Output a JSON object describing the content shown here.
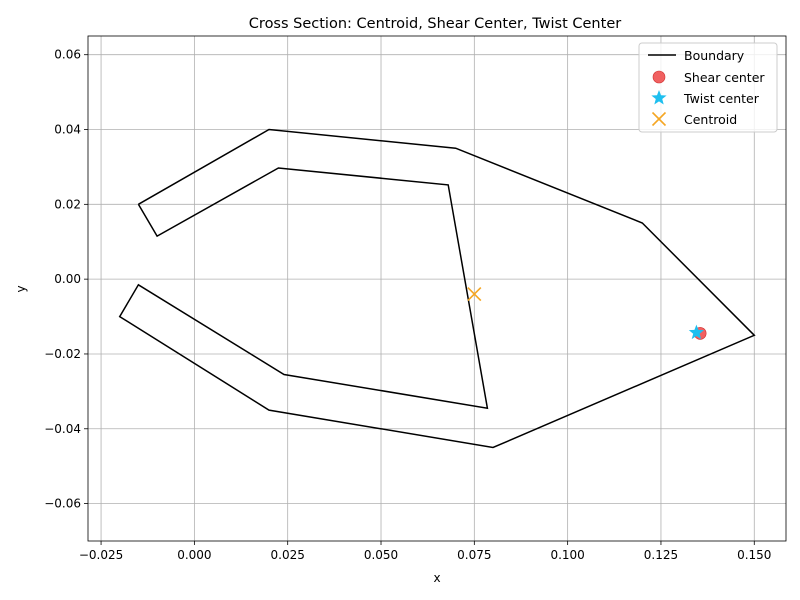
{
  "chart_data": {
    "type": "scatter",
    "title": "Cross Section: Centroid, Shear Center, Twist Center",
    "xlabel": "x",
    "ylabel": "y",
    "xlim": [
      -0.0285,
      0.1585
    ],
    "ylim": [
      -0.07,
      0.065
    ],
    "xticks": [
      -0.025,
      0.0,
      0.025,
      0.05,
      0.075,
      0.1,
      0.125,
      0.15
    ],
    "xtick_labels": [
      "−0.025",
      "0.000",
      "0.025",
      "0.050",
      "0.075",
      "0.100",
      "0.125",
      "0.150"
    ],
    "yticks": [
      -0.06,
      -0.04,
      -0.02,
      0.0,
      0.02,
      0.04,
      0.06
    ],
    "ytick_labels": [
      "−0.06",
      "−0.04",
      "−0.02",
      "0.00",
      "0.02",
      "0.04",
      "0.06"
    ],
    "grid": true,
    "legend_position": "top-right",
    "boundary": {
      "name": "Boundary",
      "color": "#000000",
      "points": [
        [
          -0.015,
          0.02
        ],
        [
          0.02,
          0.04
        ],
        [
          0.07,
          0.035
        ],
        [
          0.12,
          0.015
        ],
        [
          0.15,
          -0.015
        ],
        [
          0.08,
          -0.045
        ],
        [
          0.02,
          -0.035
        ],
        [
          -0.02,
          -0.01
        ],
        [
          -0.015,
          -0.0015
        ],
        [
          0.024,
          -0.0255
        ],
        [
          0.0785,
          -0.0345
        ],
        [
          0.068,
          0.0252
        ],
        [
          0.0225,
          0.0297
        ],
        [
          -0.01,
          0.0115
        ],
        [
          -0.015,
          0.02
        ]
      ]
    },
    "markers": [
      {
        "name": "Shear center",
        "marker": "circle",
        "color": "#f05050",
        "x": 0.1355,
        "y": -0.0145
      },
      {
        "name": "Twist center",
        "marker": "star",
        "color": "#1ebfef",
        "x": 0.1345,
        "y": -0.0143
      },
      {
        "name": "Centroid",
        "marker": "x",
        "color": "#f5a623",
        "x": 0.075,
        "y": -0.004
      }
    ]
  }
}
